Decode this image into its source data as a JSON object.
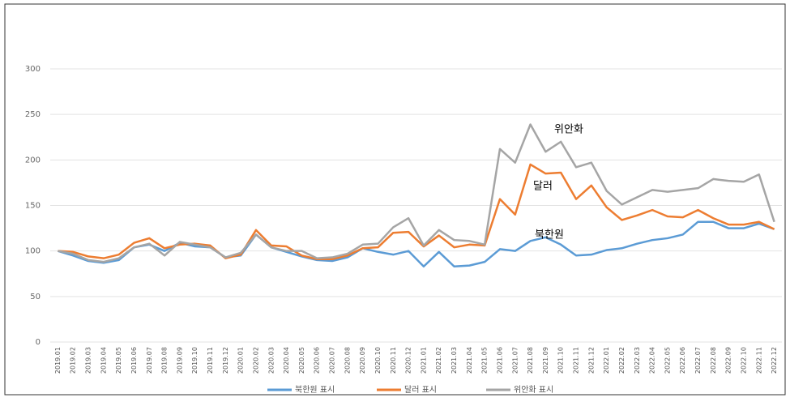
{
  "chart_data": {
    "type": "line",
    "categories": [
      "2019.01",
      "2019.02",
      "2019.03",
      "2019.04",
      "2019.05",
      "2019.06",
      "2019.07",
      "2019.08",
      "2019.09",
      "2019.10",
      "2019.11",
      "2019.12",
      "2020.01",
      "2020.02",
      "2020.03",
      "2020.04",
      "2020.05",
      "2020.06",
      "2020.07",
      "2020.08",
      "2020.09",
      "2020.10",
      "2020.11",
      "2020.12",
      "2021.01",
      "2021.02",
      "2021.03",
      "2021.04",
      "2021.05",
      "2021.06",
      "2021.07",
      "2021.08",
      "2021.09",
      "2021.10",
      "2021.11",
      "2021.12",
      "2022.01",
      "2022.02",
      "2022.03",
      "2022.04",
      "2022.05",
      "2022.06",
      "2022.07",
      "2022.08",
      "2022.09",
      "2022.10",
      "2022.11",
      "2022.12"
    ],
    "series": [
      {
        "name": "북한원 표시",
        "color": "#5b9bd5",
        "values": [
          100,
          95,
          89,
          87,
          90,
          104,
          107,
          100,
          109,
          105,
          104,
          93,
          95,
          118,
          104,
          99,
          94,
          90,
          89,
          93,
          103,
          99,
          96,
          100,
          83,
          99,
          83,
          84,
          88,
          102,
          100,
          111,
          115,
          107,
          95,
          96,
          101,
          103,
          108,
          112,
          114,
          118,
          132,
          132,
          125,
          125,
          130,
          124
        ]
      },
      {
        "name": "달러 표시",
        "color": "#ed7d31",
        "values": [
          100,
          99,
          94,
          92,
          96,
          109,
          114,
          103,
          107,
          108,
          106,
          92,
          96,
          123,
          106,
          105,
          95,
          91,
          91,
          95,
          103,
          104,
          120,
          121,
          105,
          117,
          104,
          107,
          106,
          157,
          140,
          195,
          185,
          186,
          157,
          172,
          148,
          134,
          139,
          145,
          138,
          137,
          145,
          136,
          129,
          129,
          132,
          124
        ]
      },
      {
        "name": "위안화 표시",
        "color": "#a5a5a5",
        "values": [
          100,
          97,
          90,
          88,
          92,
          104,
          108,
          95,
          110,
          107,
          104,
          93,
          98,
          118,
          104,
          100,
          100,
          92,
          93,
          97,
          107,
          108,
          126,
          136,
          106,
          123,
          112,
          111,
          107,
          212,
          197,
          239,
          209,
          220,
          192,
          197,
          166,
          151,
          159,
          167,
          165,
          167,
          169,
          179,
          177,
          176,
          184,
          132
        ]
      }
    ],
    "annotations": [
      "위안화",
      "달러",
      "북한원"
    ],
    "ylim": [
      0,
      300
    ],
    "yticks": [
      0,
      50,
      100,
      150,
      200,
      250,
      300
    ],
    "grid": true,
    "legend": "bottom"
  }
}
